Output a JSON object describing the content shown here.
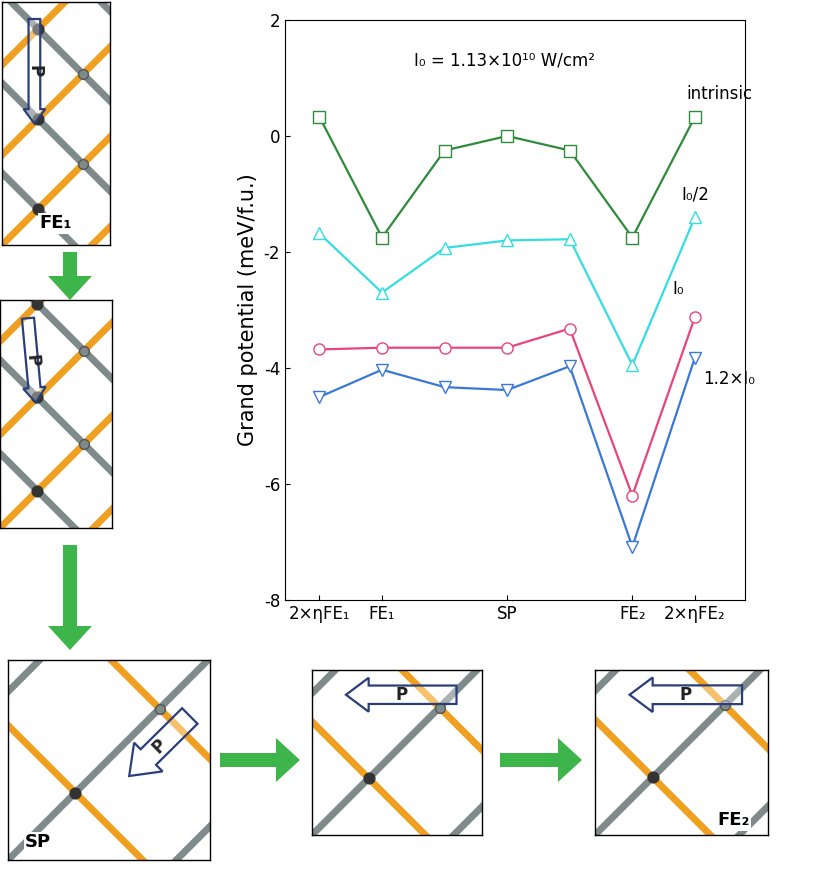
{
  "chart_data": {
    "type": "line",
    "annotation": "I₀ = 1.13×10¹⁰ W/cm²",
    "y_label": "Grand potential (meV/f.u.)",
    "categories": [
      "2×ηFE₁",
      "FE₁",
      null,
      "SP",
      null,
      "FE₂",
      "2×ηFE₂"
    ],
    "series": [
      {
        "name": "intrinsic",
        "color": "#2e8b3a",
        "marker": "square",
        "values": [
          0.33,
          -1.75,
          -0.25,
          0,
          -0.25,
          -1.75,
          0.33
        ]
      },
      {
        "name": "I₀/2",
        "color": "#33dde0",
        "marker": "triangle_up",
        "values": [
          -1.68,
          -2.7,
          -1.93,
          -1.8,
          -1.78,
          -3.95,
          -1.4
        ]
      },
      {
        "name": "I₀",
        "color": "#e8457a",
        "marker": "circle",
        "values": [
          -3.68,
          -3.65,
          -3.65,
          -3.65,
          -3.32,
          -6.2,
          -3.12
        ]
      },
      {
        "name": "1.2×I₀",
        "color": "#3a78d8",
        "marker": "triangle_down",
        "values": [
          -4.5,
          -4.03,
          -4.33,
          -4.38,
          -3.97,
          -7.08,
          -3.82
        ]
      }
    ],
    "ylim": [
      -8,
      2
    ],
    "yticks": [
      -8,
      -6,
      -4,
      -2,
      0,
      2
    ]
  },
  "diagram": {
    "structures": [
      {
        "label": "FE₁",
        "arrow": "P"
      },
      {
        "arrow": "P"
      },
      {
        "label": "SP",
        "arrow": "P"
      },
      {
        "arrow": "P"
      },
      {
        "label": "FE₂",
        "arrow": "P"
      }
    ]
  }
}
